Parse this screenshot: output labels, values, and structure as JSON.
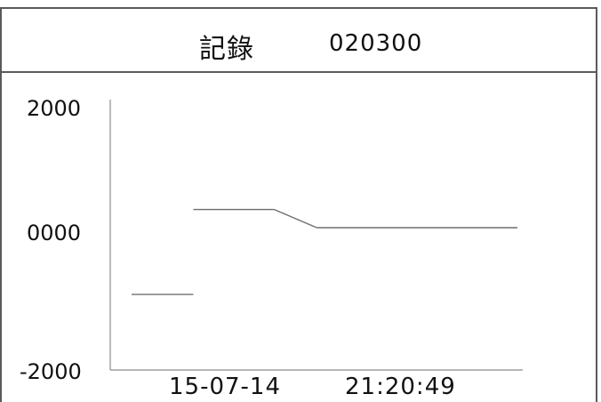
{
  "header": {
    "title": "記錄",
    "code": "020300"
  },
  "chart_data": {
    "type": "line",
    "title": "記錄 020300",
    "y_ticks": [
      "2000",
      "0000",
      "-2000"
    ],
    "ylim": [
      -2000,
      2000
    ],
    "x_labels": {
      "date": "15-07-14",
      "time": "21:20:49"
    },
    "grid": false,
    "segments": [
      {
        "x": [
          0.0,
          0.16
        ],
        "y": [
          -950,
          -950
        ]
      },
      {
        "x": [
          0.16,
          0.37
        ],
        "y": [
          300,
          300
        ]
      },
      {
        "x": [
          0.37,
          0.48
        ],
        "y": [
          300,
          0
        ]
      },
      {
        "x": [
          0.48,
          1.0
        ],
        "y": [
          0,
          0
        ]
      }
    ],
    "colors": {
      "axis": "#8c8c8c",
      "line": "#6e6e6e",
      "frame": "#5a5a5a"
    }
  }
}
